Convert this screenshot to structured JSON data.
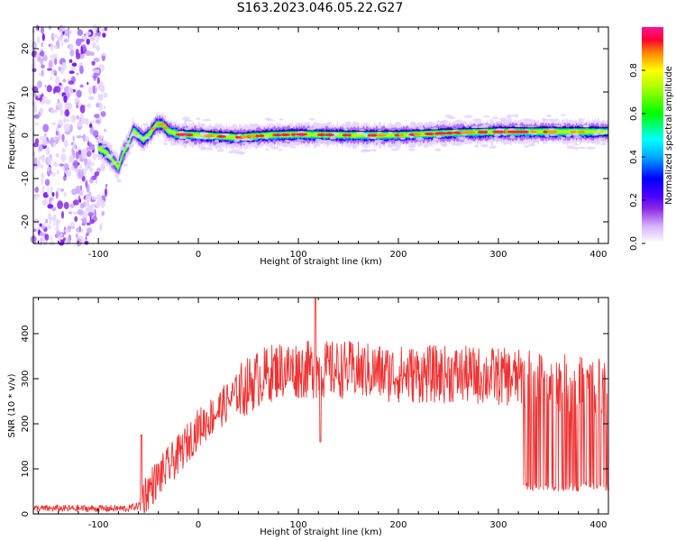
{
  "title": "S163.2023.046.05.22.G27",
  "colors": {
    "line": "#ee3333",
    "colormap": [
      "#ffffff",
      "#e8d8ff",
      "#b070ff",
      "#7a00ff",
      "#0000ff",
      "#00aaff",
      "#00ffdd",
      "#00ff44",
      "#aaff00",
      "#ffee00",
      "#ff9900",
      "#ff2244",
      "#ff1493"
    ]
  },
  "chart_data": [
    {
      "type": "heatmap",
      "ylabel": "Frequency (Hz)",
      "xlabel": "Height of straight line (km)",
      "xlim": [
        -165,
        410
      ],
      "ylim": [
        -25,
        25
      ],
      "x_ticks": [
        "-100",
        "0",
        "100",
        "200",
        "300",
        "400"
      ],
      "y_ticks": [
        "-20",
        "-10",
        "0",
        "10",
        "20"
      ],
      "colorbar": {
        "label": "Normalized spectral amplitude",
        "ticks": [
          "0.0",
          "0.2",
          "0.4",
          "0.6",
          "0.8"
        ],
        "range": [
          0,
          1
        ]
      },
      "noise_region_x": [
        -165,
        -90
      ],
      "ridge": [
        {
          "x": -100,
          "y": -3
        },
        {
          "x": -92,
          "y": -4
        },
        {
          "x": -85,
          "y": -6
        },
        {
          "x": -80,
          "y": -7.5
        },
        {
          "x": -75,
          "y": -4
        },
        {
          "x": -70,
          "y": -2
        },
        {
          "x": -65,
          "y": 1
        },
        {
          "x": -60,
          "y": 0
        },
        {
          "x": -55,
          "y": -1
        },
        {
          "x": -48,
          "y": 0.5
        },
        {
          "x": -42,
          "y": 2.5
        },
        {
          "x": -36,
          "y": 2.5
        },
        {
          "x": -30,
          "y": 1
        },
        {
          "x": -20,
          "y": 0.2
        },
        {
          "x": 0,
          "y": 0
        },
        {
          "x": 40,
          "y": -0.5
        },
        {
          "x": 70,
          "y": 0
        },
        {
          "x": 100,
          "y": 0.2
        },
        {
          "x": 150,
          "y": 0
        },
        {
          "x": 200,
          "y": 0
        },
        {
          "x": 250,
          "y": 0.5
        },
        {
          "x": 300,
          "y": 0.8
        },
        {
          "x": 350,
          "y": 0.8
        },
        {
          "x": 410,
          "y": 0.8
        }
      ]
    },
    {
      "type": "line",
      "ylabel": "SNR (10 * v/v)",
      "xlabel": "Height of straight line (km)",
      "xlim": [
        -165,
        410
      ],
      "ylim": [
        0,
        480
      ],
      "x_ticks": [
        "-100",
        "0",
        "100",
        "200",
        "300",
        "400"
      ],
      "y_ticks": [
        "0",
        "100",
        "200",
        "300",
        "400"
      ],
      "envelope": [
        {
          "x": -165,
          "y": 12
        },
        {
          "x": -70,
          "y": 12
        },
        {
          "x": -58,
          "y": 20
        },
        {
          "x": -55,
          "y": 40
        },
        {
          "x": -40,
          "y": 80
        },
        {
          "x": -20,
          "y": 130
        },
        {
          "x": 0,
          "y": 190
        },
        {
          "x": 20,
          "y": 230
        },
        {
          "x": 40,
          "y": 270
        },
        {
          "x": 60,
          "y": 300
        },
        {
          "x": 80,
          "y": 320
        },
        {
          "x": 100,
          "y": 320
        },
        {
          "x": 120,
          "y": 320
        },
        {
          "x": 150,
          "y": 320
        },
        {
          "x": 200,
          "y": 310
        },
        {
          "x": 250,
          "y": 310
        },
        {
          "x": 300,
          "y": 305
        },
        {
          "x": 325,
          "y": 300
        },
        {
          "x": 410,
          "y": 280
        }
      ],
      "features": [
        {
          "x": -57,
          "y": 175
        },
        {
          "x": 117,
          "y": 480
        },
        {
          "x": 122,
          "y": 160
        }
      ],
      "dropout_region_x": [
        325,
        410
      ],
      "dropout_min": 50
    }
  ]
}
